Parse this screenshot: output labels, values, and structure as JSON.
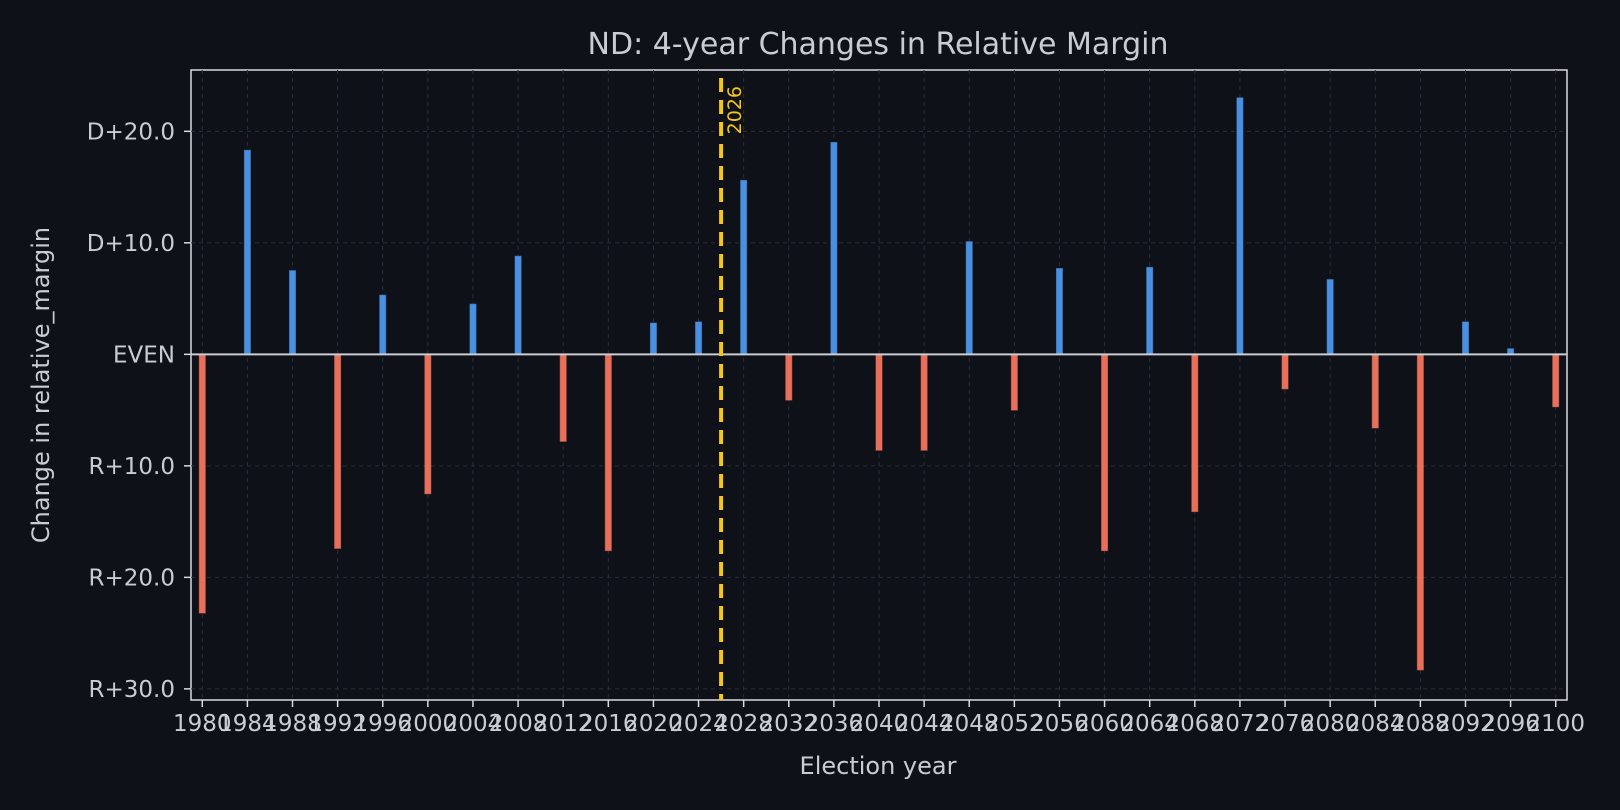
{
  "chart_data": {
    "type": "bar",
    "title": "ND: 4-year Changes in Relative Margin",
    "xlabel": "Election year",
    "ylabel": "Change in relative_margin",
    "x": [
      1980,
      1984,
      1988,
      1992,
      1996,
      2000,
      2004,
      2008,
      2012,
      2016,
      2020,
      2024,
      2028,
      2032,
      2036,
      2040,
      2044,
      2048,
      2052,
      2056,
      2060,
      2064,
      2068,
      2072,
      2076,
      2080,
      2084,
      2088,
      2092,
      2096,
      2100
    ],
    "values": [
      -23.2,
      18.3,
      7.5,
      -17.4,
      5.3,
      -12.5,
      4.5,
      8.8,
      -7.8,
      -17.6,
      2.8,
      2.9,
      15.6,
      -4.1,
      19.0,
      -8.6,
      -8.6,
      10.1,
      -5.0,
      7.7,
      -17.6,
      7.8,
      -14.1,
      23.0,
      -3.1,
      6.7,
      -6.6,
      -28.3,
      2.9,
      0.5,
      -4.7
    ],
    "xlim": [
      1979,
      2101
    ],
    "ylim": [
      -31,
      25.5
    ],
    "yticks": [
      20,
      10,
      0,
      -10,
      -20,
      -30
    ],
    "ytick_labels": [
      "D+20.0",
      "D+10.0",
      "EVEN",
      "R+10.0",
      "R+20.0",
      "R+30.0"
    ],
    "xtick_labels": [
      "1980",
      "1984",
      "1988",
      "1992",
      "1996",
      "2000",
      "2004",
      "2008",
      "2012",
      "2016",
      "2020",
      "2024",
      "2028",
      "2032",
      "2036",
      "2040",
      "2044",
      "2048",
      "2052",
      "2056",
      "2060",
      "2064",
      "2068",
      "2072",
      "2076",
      "2080",
      "2084",
      "2088",
      "2092",
      "2096",
      "2100"
    ],
    "marker": {
      "x": 2026,
      "label": "2026",
      "color": "#f5c518"
    },
    "grid": true,
    "colors": {
      "positive": "#4a90e2",
      "negative": "#e8705a",
      "background": "#0e1118",
      "text": "#c9ccd3",
      "zero_line": "#c9ccd3"
    }
  }
}
